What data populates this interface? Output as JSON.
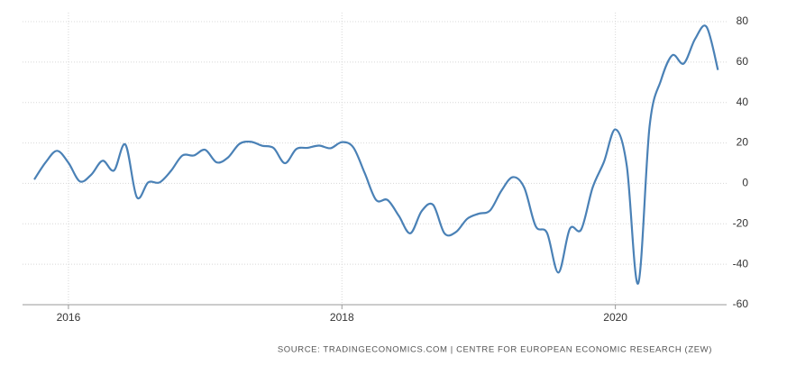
{
  "chart_data": {
    "type": "line",
    "categories": [
      null,
      null,
      null,
      "2016",
      null,
      null,
      null,
      null,
      null,
      null,
      null,
      null,
      null,
      null,
      null,
      null,
      null,
      null,
      null,
      null,
      null,
      null,
      null,
      null,
      null,
      null,
      null,
      "2018",
      null,
      null,
      null,
      null,
      null,
      null,
      null,
      null,
      null,
      null,
      null,
      null,
      null,
      null,
      null,
      null,
      null,
      null,
      null,
      null,
      null,
      null,
      null,
      "2020",
      null,
      null,
      null,
      null,
      null,
      null,
      null,
      null,
      null
    ],
    "series": [
      {
        "color": "#4a81b6",
        "values": [
          1.9,
          10.4,
          16.1,
          10.2,
          1.0,
          4.3,
          11.2,
          6.4,
          19.2,
          -6.8,
          0.5,
          0.5,
          6.2,
          13.8,
          13.8,
          16.6,
          10.4,
          12.8,
          19.5,
          20.6,
          18.6,
          17.5,
          10.0,
          17.0,
          17.6,
          18.7,
          17.4,
          20.4,
          17.8,
          5.1,
          -8.2,
          -8.2,
          -16.1,
          -24.7,
          -13.7,
          -10.6,
          -24.7,
          -24.1,
          -17.5,
          -15.0,
          -13.4,
          -3.6,
          3.1,
          -2.1,
          -21.1,
          -24.5,
          -44.1,
          -22.5,
          -22.8,
          -2.1,
          10.7,
          26.7,
          8.7,
          -49.5,
          28.2,
          51.0,
          63.4,
          59.3,
          71.5,
          77.4,
          56.1
        ]
      }
    ],
    "ylim": [
      -60,
      80
    ],
    "yticks": [
      -60,
      -40,
      -20,
      0,
      20,
      40,
      60,
      80
    ],
    "grid": true,
    "source": "SOURCE: TRADINGECONOMICS.COM | CENTRE FOR EUROPEAN ECONOMIC RESEARCH (ZEW)"
  }
}
